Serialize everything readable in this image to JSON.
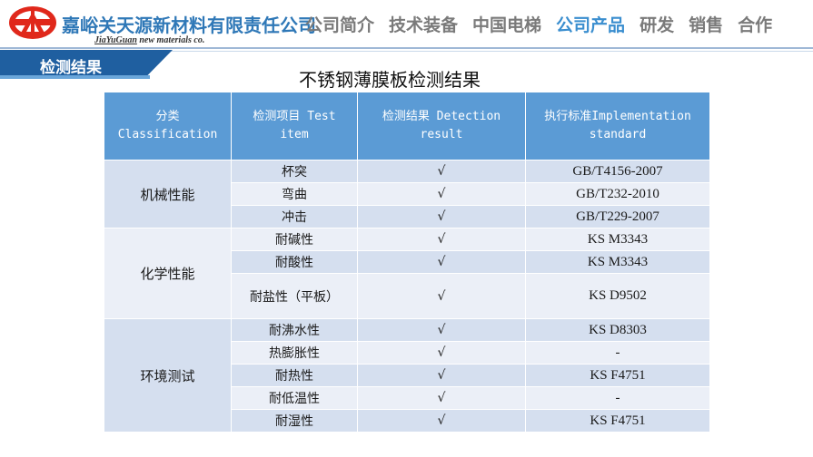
{
  "header": {
    "company_name": "嘉峪关天源新材料有限责任公司",
    "company_en_part1": "JiaYuGuan",
    "company_en_part2": " new materials co.",
    "logo_icon": "company-logo-icon",
    "nav": [
      {
        "label": "公司简介",
        "active": false
      },
      {
        "label": "技术装备",
        "active": false
      },
      {
        "label": "中国电梯",
        "active": false
      },
      {
        "label": "公司产品",
        "active": true
      },
      {
        "label": "研发",
        "active": false
      },
      {
        "label": "销售",
        "active": false
      },
      {
        "label": "合作",
        "active": false
      }
    ]
  },
  "section_tab": "检测结果",
  "page_title": "不锈钢薄膜板检测结果",
  "table": {
    "headers": [
      {
        "line1": "分类",
        "line2": "Classification"
      },
      {
        "line1": "检测项目 Test",
        "line2": "item"
      },
      {
        "line1": "检测结果 Detection",
        "line2": "result"
      },
      {
        "line1": "执行标准Implementation",
        "line2": "standard"
      }
    ],
    "groups": [
      {
        "category": "机械性能",
        "rows": [
          {
            "item": "杯突",
            "result": "√",
            "standard": "GB/T4156-2007"
          },
          {
            "item": "弯曲",
            "result": "√",
            "standard": "GB/T232-2010"
          },
          {
            "item": "冲击",
            "result": "√",
            "standard": "GB/T229-2007"
          }
        ]
      },
      {
        "category": "化学性能",
        "rows": [
          {
            "item": "耐碱性",
            "result": "√",
            "standard": "KS M3343"
          },
          {
            "item": "耐酸性",
            "result": "√",
            "standard": "KS M3343"
          },
          {
            "item": "耐盐性（平板）",
            "result": "√",
            "standard": "KS D9502"
          }
        ]
      },
      {
        "category": "环境测试",
        "rows": [
          {
            "item": "耐沸水性",
            "result": "√",
            "standard": "KS D8303"
          },
          {
            "item": "热膨胀性",
            "result": "√",
            "standard": "-"
          },
          {
            "item": "耐热性",
            "result": "√",
            "standard": "KS F4751"
          },
          {
            "item": "耐低温性",
            "result": "√",
            "standard": "-"
          },
          {
            "item": "耐湿性",
            "result": "√",
            "standard": "KS F4751"
          }
        ]
      }
    ]
  },
  "colors": {
    "brand_blue": "#2f78b7",
    "logo_red": "#e0281b",
    "header_cell": "#5b9bd5",
    "row_dark": "#d5dfef",
    "row_light": "#ebeff7",
    "tab_blue": "#1f5fa0"
  }
}
